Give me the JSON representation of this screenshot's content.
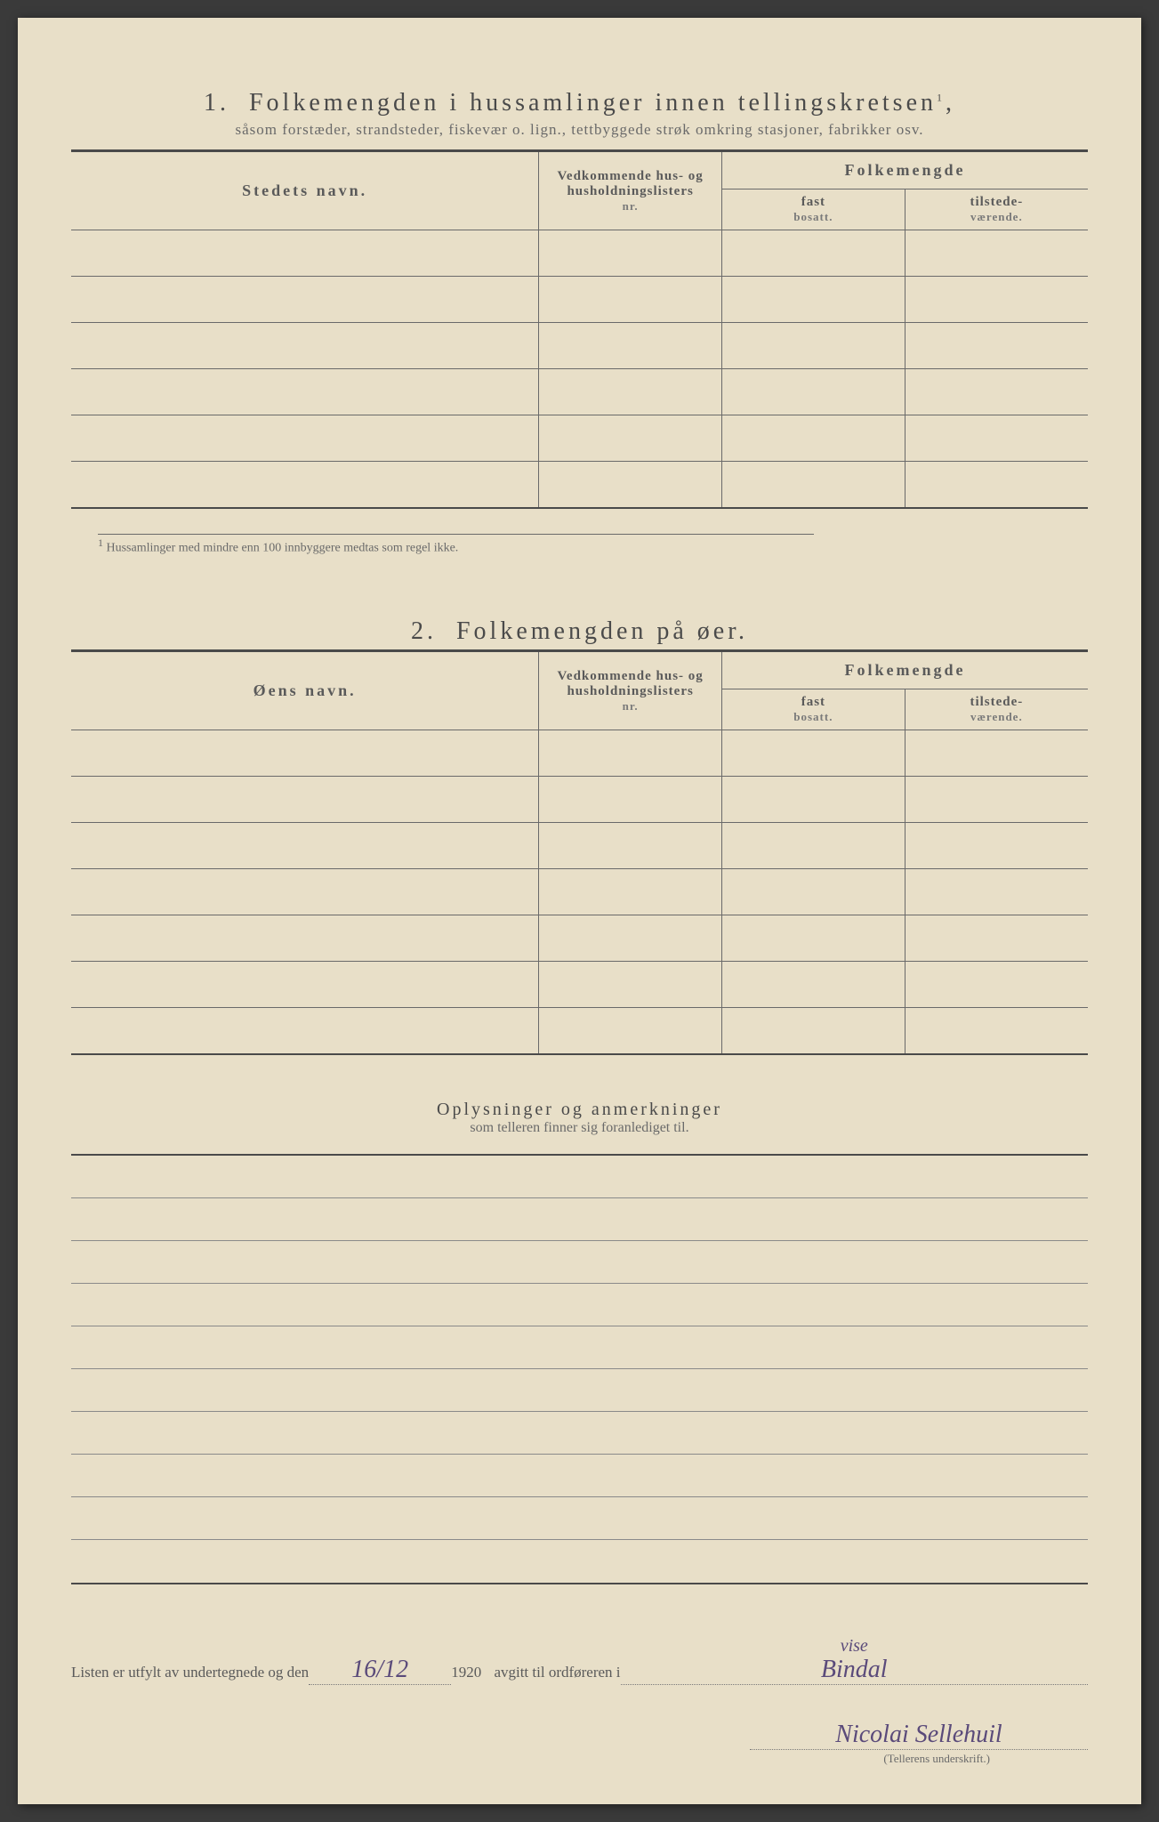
{
  "section1": {
    "number": "1.",
    "title": "Folkemengden i hussamlinger innen tellingskretsen",
    "title_sup": "1",
    "subtitle": "såsom forstæder, strandsteder, fiskevær o. lign., tettbyggede strøk omkring stasjoner, fabrikker osv.",
    "headers": {
      "col1": "Stedets navn.",
      "col2_line1": "Vedkommende hus- og",
      "col2_line2": "husholdningslisters",
      "col2_line3": "nr.",
      "col3": "Folkemengde",
      "col3a_line1": "fast",
      "col3a_line2": "bosatt.",
      "col3b_line1": "tilstede-",
      "col3b_line2": "værende."
    },
    "row_count": 6,
    "footnote_marker": "1",
    "footnote": "Hussamlinger med mindre enn 100 innbyggere medtas som regel ikke."
  },
  "section2": {
    "number": "2.",
    "title": "Folkemengden på øer.",
    "headers": {
      "col1": "Øens navn.",
      "col2_line1": "Vedkommende hus- og",
      "col2_line2": "husholdningslisters",
      "col2_line3": "nr.",
      "col3": "Folkemengde",
      "col3a_line1": "fast",
      "col3a_line2": "bosatt.",
      "col3b_line1": "tilstede-",
      "col3b_line2": "værende."
    },
    "row_count": 7
  },
  "notes": {
    "title": "Oplysninger og anmerkninger",
    "subtitle": "som telleren finner sig foranlediget til.",
    "line_count": 10
  },
  "signature": {
    "text1": "Listen er utfylt av undertegnede og den",
    "date_hw": "16/12",
    "year": "1920",
    "text2": "avgitt til ordføreren i",
    "insert_hw": "vise",
    "place_hw": "Bindal",
    "name_hw": "Nicolai Sellehuil",
    "caption": "(Tellerens underskrift.)"
  },
  "colors": {
    "page_bg": "#e8dfc8",
    "text": "#4a4a4a",
    "border": "#6a6a6a",
    "handwriting": "#5a4a7a"
  }
}
